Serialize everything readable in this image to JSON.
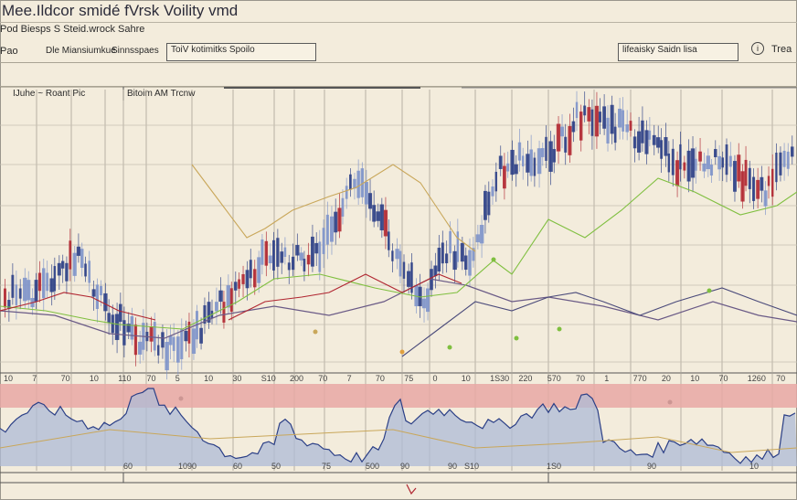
{
  "window": {
    "title": "Mee.Ildcor smidé fVrsk Voility vmd"
  },
  "toolbar": {
    "left_label": "Pod Biesps  S Steid.wrock  Sahre",
    "row2_prefix": "Pao",
    "item1": "Dle Miansiumkue",
    "item2": "Sinnsspaes",
    "box1": "ToiV  kotimitks    Spoilo",
    "box2": "lifeaisky  Saidn  lisa",
    "right_label": "Trea"
  },
  "panel": {
    "left_label": "IJuhe  ~  Roant Pic",
    "right_label": "Bitoim AM Trcnw"
  },
  "axis": {
    "x_ticks": [
      "10",
      "7",
      "70",
      "10",
      "110",
      "70",
      "5",
      "10",
      "30",
      "S10",
      "200",
      "70",
      "7",
      "70",
      "75",
      "0",
      "10",
      "1S30",
      "220",
      "570",
      "70",
      "1",
      "770",
      "20",
      "10",
      "70",
      "1260",
      "70"
    ],
    "lower_ticks": [
      "60",
      "1090",
      "60",
      "50",
      "75",
      "500",
      "90",
      "90",
      "S10",
      "1S0",
      "90",
      "10"
    ]
  },
  "colors": {
    "background": "#f3ecdc",
    "candle_blue": "#2b3f86",
    "candle_light": "#7d93c9",
    "candle_red": "#b02530",
    "band": "#e7a8a5",
    "area_fill": "#aebbd7",
    "area_line": "#2b3f86",
    "ma_green": "#7fbf3f",
    "ma_orange": "#c9a75a",
    "ma_purple": "#6a5a86"
  }
}
